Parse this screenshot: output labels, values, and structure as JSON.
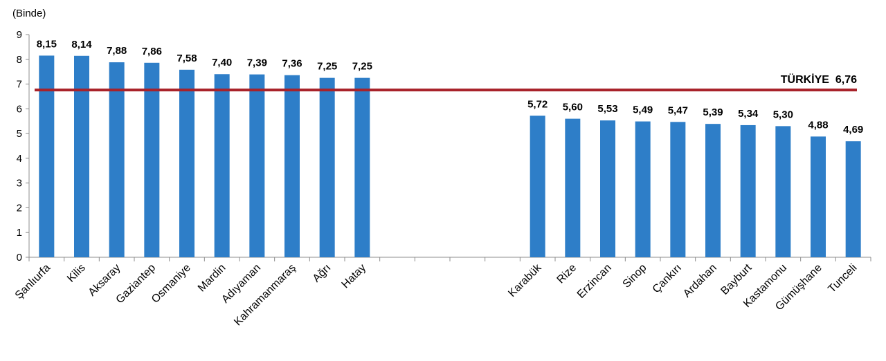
{
  "chart_data": {
    "type": "bar",
    "unit_label": "(Binde)",
    "ylim": [
      0,
      9
    ],
    "yticks": [
      "0",
      "1",
      "2",
      "3",
      "4",
      "5",
      "6",
      "7",
      "8",
      "9"
    ],
    "categories": [
      "Şanlıurfa",
      "Kilis",
      "Aksaray",
      "Gaziantep",
      "Osmaniye",
      "Mardin",
      "Adıyaman",
      "Kahramanmaraş",
      "Ağrı",
      "Hatay",
      "",
      "",
      "",
      "",
      "Karabük",
      "Rize",
      "Erzincan",
      "Sinop",
      "Çankırı",
      "Ardahan",
      "Bayburt",
      "Kastamonu",
      "Gümüşhane",
      "Tunceli"
    ],
    "values": [
      8.15,
      8.14,
      7.88,
      7.86,
      7.58,
      7.4,
      7.39,
      7.36,
      7.25,
      7.25,
      null,
      null,
      null,
      null,
      5.72,
      5.6,
      5.53,
      5.49,
      5.47,
      5.39,
      5.34,
      5.3,
      4.88,
      4.69
    ],
    "value_labels": [
      "8,15",
      "8,14",
      "7,88",
      "7,86",
      "7,58",
      "7,40",
      "7,39",
      "7,36",
      "7,25",
      "7,25",
      "",
      "",
      "",
      "",
      "5,72",
      "5,60",
      "5,53",
      "5,49",
      "5,47",
      "5,39",
      "5,34",
      "5,30",
      "4,88",
      "4,69"
    ],
    "reference_line": {
      "value": 6.76,
      "label": "TÜRKİYE  6,76"
    },
    "grid": false,
    "legend": "none"
  },
  "colors": {
    "bar": "#2E7EC8",
    "reference_line": "#A8222A",
    "axis": "#8C8C8C"
  }
}
